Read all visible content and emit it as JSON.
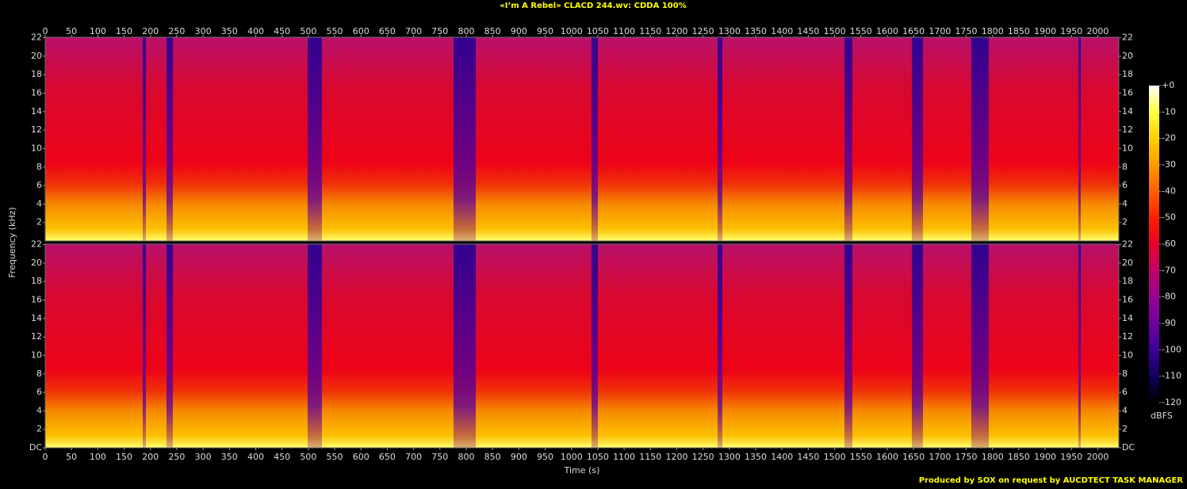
{
  "chart_data": {
    "type": "spectrogram",
    "title": "«I’m A Rebel» CLACD 244.wv: CDDA 100%",
    "x_label": "Time (s)",
    "y_label": "Frequency (kHz)",
    "footer": "Produced by SOX on request by AUCDTECT TASK MANAGER",
    "xlim": [
      0,
      2040
    ],
    "xticks": [
      0,
      50,
      100,
      150,
      200,
      250,
      300,
      350,
      400,
      450,
      500,
      550,
      600,
      650,
      700,
      750,
      800,
      850,
      900,
      950,
      1000,
      1050,
      1100,
      1150,
      1200,
      1250,
      1300,
      1350,
      1400,
      1450,
      1500,
      1550,
      1600,
      1650,
      1700,
      1750,
      1800,
      1850,
      1900,
      1950,
      2000
    ],
    "ylim": [
      0,
      22.05
    ],
    "yticks": [
      {
        "value": 0,
        "label": "DC"
      },
      2,
      4,
      6,
      8,
      10,
      12,
      14,
      16,
      18,
      20,
      22
    ],
    "colorbar": {
      "label": "dBFS",
      "zlim": [
        -120,
        0
      ],
      "zticks": [
        {
          "value": 0,
          "label": "+0"
        },
        -10,
        -20,
        -30,
        -40,
        -50,
        -60,
        -70,
        -80,
        -90,
        -100,
        -110,
        -120
      ],
      "colormap": [
        "#000000",
        "#10005a",
        "#3c0096",
        "#6e00a0",
        "#9a0090",
        "#c4006a",
        "#e8002a",
        "#ff2000",
        "#ff6000",
        "#ff9a00",
        "#ffd000",
        "#ffff40",
        "#ffffff"
      ]
    }
  }
}
